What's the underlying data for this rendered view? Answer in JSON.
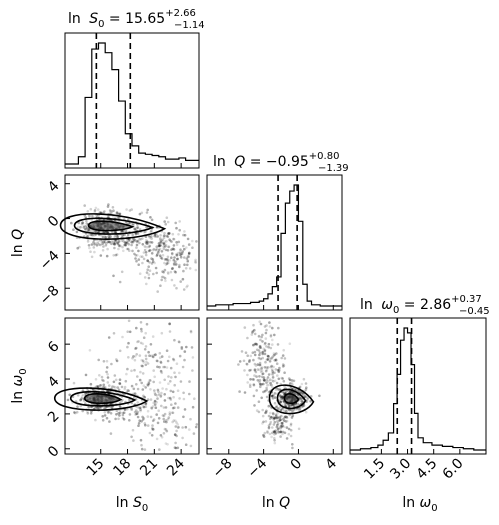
{
  "chart_data": {
    "type": "corner",
    "parameters": [
      {
        "key": "lnS0",
        "axis_label": "ln S₀",
        "title": "ln S₀ = 15.65⁺²·⁶⁶₋₁.₁₄",
        "title_main": "ln",
        "title_sym": "S",
        "title_sub": "0",
        "title_eq": " = 15.65",
        "err_plus": "+2.66",
        "err_minus": "−1.14",
        "median": 15.65,
        "q_lo": 14.51,
        "q_hi": 18.31,
        "range": [
          11,
          26
        ],
        "ticks": [
          15,
          18,
          21,
          24
        ],
        "tick_labels": [
          "15",
          "18",
          "21",
          "24"
        ]
      },
      {
        "key": "lnQ",
        "axis_label": "ln Q",
        "title_main": "ln",
        "title_sym": "Q",
        "title_sub": "",
        "title_eq": " = −0.95",
        "err_plus": "+0.80",
        "err_minus": "−1.39",
        "median": -0.95,
        "q_lo": -2.34,
        "q_hi": -0.15,
        "range": [
          -10.5,
          5
        ],
        "ticks": [
          -8,
          -4,
          0,
          4
        ],
        "tick_labels": [
          "−8",
          "−4",
          "0",
          "4"
        ]
      },
      {
        "key": "lnw0",
        "axis_label": "ln ω₀",
        "title_main": "ln",
        "title_sym": "ω",
        "title_sub": "0",
        "title_eq": " = 2.86",
        "err_plus": "+0.37",
        "err_minus": "−0.45",
        "median": 2.86,
        "q_lo": 2.41,
        "q_hi": 3.23,
        "range": [
          -0.3,
          7.5
        ],
        "ticks": [
          1.5,
          3.0,
          4.5,
          6.0
        ],
        "tick_labels": [
          "1.5",
          "3.0",
          "4.5",
          "6.0"
        ],
        "y_ticks": [
          0,
          2,
          4,
          6
        ],
        "y_tick_labels": [
          "0",
          "2",
          "4",
          "6"
        ]
      }
    ],
    "lnQ_y_ticks": [
      4,
      0,
      -4,
      -8
    ],
    "lnQ_y_tick_labels": [
      "4",
      "0",
      "−4",
      "−8"
    ],
    "histograms": {
      "lnS0": {
        "bins": [
          11,
          11.75,
          12.5,
          13.25,
          14,
          14.75,
          15.5,
          16.25,
          17,
          17.75,
          18.5,
          19.25,
          20,
          20.75,
          21.5,
          22.25,
          23,
          23.75,
          24.5,
          25.25,
          26
        ],
        "counts": [
          0,
          0,
          6,
          55,
          95,
          100,
          92,
          78,
          52,
          25,
          15,
          9,
          8,
          7,
          6,
          4,
          4,
          5,
          3,
          3
        ]
      },
      "lnQ": {
        "bins": [
          -10.5,
          -9.5,
          -8.5,
          -7.5,
          -6.5,
          -5.5,
          -4.5,
          -4,
          -3.5,
          -3,
          -2.5,
          -2,
          -1.5,
          -1,
          -0.5,
          0,
          0.5,
          1,
          1.5,
          2.5,
          3.5,
          5
        ],
        "counts": [
          0,
          1,
          1,
          2,
          2,
          3,
          4,
          6,
          10,
          16,
          24,
          60,
          85,
          95,
          100,
          70,
          18,
          4,
          1,
          0,
          0
        ]
      },
      "lnw0": {
        "bins": [
          -0.3,
          0.3,
          0.9,
          1.3,
          1.6,
          1.9,
          2.2,
          2.4,
          2.6,
          2.8,
          3.0,
          3.2,
          3.4,
          3.6,
          3.9,
          4.4,
          5.0,
          5.6,
          6.2,
          6.8,
          7.5
        ],
        "counts": [
          0,
          1,
          2,
          4,
          8,
          14,
          38,
          62,
          90,
          100,
          96,
          70,
          30,
          10,
          6,
          4,
          3,
          2,
          1,
          0
        ]
      }
    },
    "scatter_panels": {
      "lnS0_lnQ": {
        "clusters": [
          {
            "cx": 15.2,
            "cy": -0.8,
            "sx": 1.3,
            "sy": 0.9,
            "n": 320
          },
          {
            "cx": 19.5,
            "cy": -2.2,
            "sx": 2.6,
            "sy": 1.2,
            "n": 180
          },
          {
            "cx": 22.5,
            "cy": -4.8,
            "sx": 1.8,
            "sy": 1.6,
            "n": 160
          },
          {
            "cx": 17.5,
            "cy": -2.6,
            "sx": 2.5,
            "sy": 1.0,
            "n": 80
          }
        ],
        "contour_peak": [
          15.2,
          -0.8
        ]
      },
      "lnS0_lnw0": {
        "clusters": [
          {
            "cx": 15.0,
            "cy": 2.9,
            "sx": 1.3,
            "sy": 0.4,
            "n": 320
          },
          {
            "cx": 19.0,
            "cy": 2.5,
            "sx": 2.8,
            "sy": 0.6,
            "n": 150
          },
          {
            "cx": 21.0,
            "cy": 4.5,
            "sx": 3.0,
            "sy": 1.5,
            "n": 180
          },
          {
            "cx": 22.0,
            "cy": 1.2,
            "sx": 2.2,
            "sy": 0.8,
            "n": 80
          }
        ],
        "contour_peak": [
          15.0,
          2.9
        ]
      },
      "lnQ_lnw0": {
        "clusters": [
          {
            "cx": -0.8,
            "cy": 2.9,
            "sx": 0.9,
            "sy": 0.4,
            "n": 320
          },
          {
            "cx": -3.8,
            "cy": 4.7,
            "sx": 1.2,
            "sy": 1.2,
            "n": 220
          },
          {
            "cx": -2.5,
            "cy": 1.5,
            "sx": 1.0,
            "sy": 0.6,
            "n": 120
          }
        ],
        "contour_peak": [
          -0.8,
          2.9
        ]
      }
    }
  }
}
